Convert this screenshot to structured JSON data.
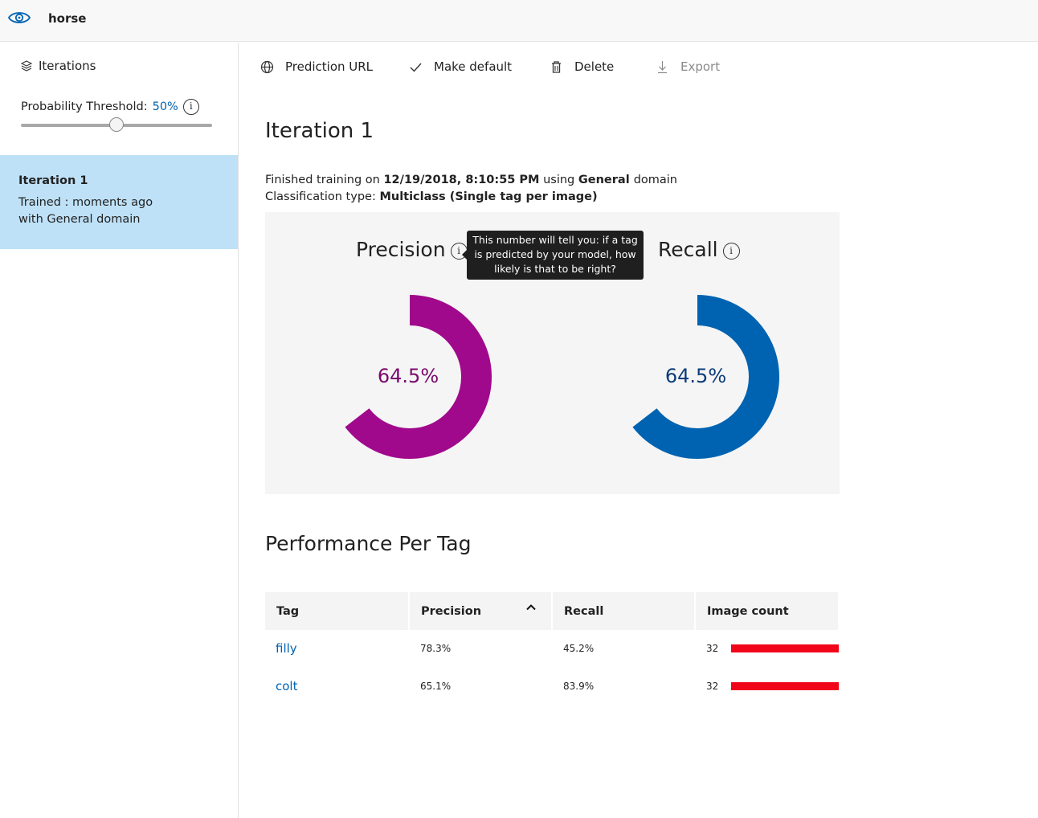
{
  "header": {
    "project_name": "horse",
    "logo_icon": "eye-icon"
  },
  "sidebar": {
    "title": "Iterations",
    "threshold_label": "Probability Threshold:",
    "threshold_value": "50%",
    "threshold_fraction": 0.5,
    "iterations": [
      {
        "name": "Iteration 1",
        "line1": "Trained : moments ago",
        "line2": "with General domain",
        "selected": true
      }
    ]
  },
  "toolbar": {
    "prediction_url": "Prediction URL",
    "make_default": "Make default",
    "delete": "Delete",
    "export": "Export"
  },
  "main": {
    "title": "Iteration 1",
    "meta": {
      "finished_prefix": "Finished training on",
      "date": "12/19/2018, 8:10:55 PM",
      "using": "using",
      "domain": "General",
      "domain_suffix": "domain",
      "classification_prefix": "Classification type:",
      "classification": "Multiclass (Single tag per image)"
    },
    "metrics": {
      "precision": {
        "label": "Precision",
        "value_text": "64.5%",
        "value": 0.645,
        "color": "#a0098c",
        "text_color": "#7a0a6a"
      },
      "recall": {
        "label": "Recall",
        "value_text": "64.5%",
        "value": 0.645,
        "color": "#0063b1",
        "text_color": "#0b3c78"
      }
    },
    "tooltip": "This number will tell you: if a tag is predicted by your model, how likely is that to be right?",
    "performance_title": "Performance Per Tag",
    "table": {
      "headers": {
        "tag": "Tag",
        "precision": "Precision",
        "recall": "Recall",
        "image_count": "Image count"
      },
      "rows": [
        {
          "tag": "filly",
          "precision": "78.3%",
          "recall": "45.2%",
          "image_count": "32",
          "bar_fraction": 1.0
        },
        {
          "tag": "colt",
          "precision": "65.1%",
          "recall": "83.9%",
          "image_count": "32",
          "bar_fraction": 1.0
        }
      ]
    }
  },
  "colors": {
    "accent": "#0063b1",
    "selected_bg": "#bee1f7",
    "bar": "#f0051a"
  }
}
